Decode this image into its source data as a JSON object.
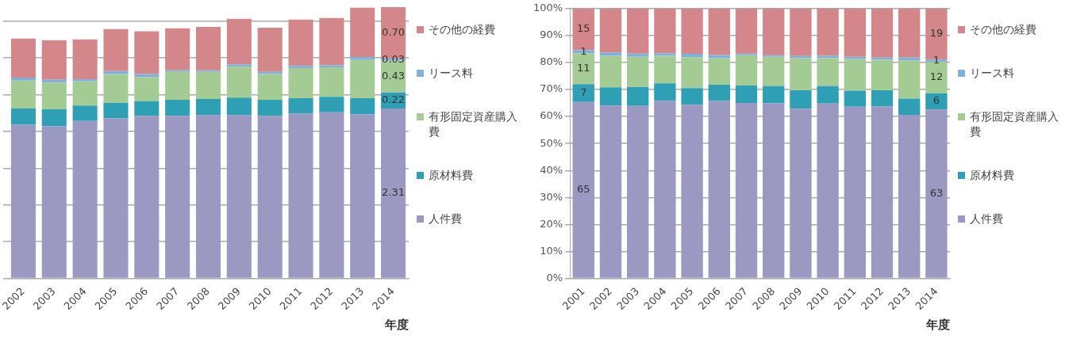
{
  "chart_data": [
    {
      "type": "bar",
      "stacked": true,
      "xlabel": "年度",
      "categories": [
        "2002",
        "2003",
        "2004",
        "2005",
        "2006",
        "2007",
        "2008",
        "2009",
        "2010",
        "2011",
        "2012",
        "2013",
        "2014"
      ],
      "ylim": [
        0,
        3.7
      ],
      "yticks": [
        {
          "value": 0,
          "label": null
        },
        {
          "value": 0.5,
          "label": null
        },
        {
          "value": 1,
          "label": null
        },
        {
          "value": 1.5,
          "label": null
        },
        {
          "value": 2,
          "label": null
        },
        {
          "value": 2.5,
          "label": null
        },
        {
          "value": 3,
          "label": null
        },
        {
          "value": 3.5,
          "label": null
        }
      ],
      "tick_labels": "x",
      "grid": "y",
      "legend": "right",
      "series": [
        {
          "name": "人件費",
          "color": "#9b98c1",
          "values": [
            2.09,
            2.07,
            2.14,
            2.18,
            2.21,
            2.21,
            2.22,
            2.22,
            2.21,
            2.24,
            2.26,
            2.23,
            2.31
          ],
          "value_labels": [
            null,
            null,
            null,
            null,
            null,
            null,
            null,
            null,
            null,
            null,
            null,
            null,
            "2.31"
          ]
        },
        {
          "name": "原材料費",
          "color": "#2e9fb5",
          "values": [
            0.22,
            0.23,
            0.21,
            0.21,
            0.2,
            0.22,
            0.22,
            0.24,
            0.22,
            0.21,
            0.21,
            0.22,
            0.22
          ],
          "value_labels": [
            null,
            null,
            null,
            null,
            null,
            null,
            null,
            null,
            null,
            null,
            null,
            null,
            "0.22"
          ]
        },
        {
          "name": "有形固定資産購入費",
          "color": "#a5cb95",
          "values": [
            0.38,
            0.36,
            0.33,
            0.39,
            0.33,
            0.38,
            0.37,
            0.42,
            0.35,
            0.41,
            0.4,
            0.52,
            0.43
          ],
          "value_labels": [
            null,
            null,
            null,
            null,
            null,
            null,
            null,
            null,
            null,
            null,
            null,
            null,
            "0.43"
          ]
        },
        {
          "name": "リース料",
          "color": "#7fb1dc",
          "values": [
            0.04,
            0.04,
            0.03,
            0.04,
            0.04,
            0.02,
            0.02,
            0.03,
            0.03,
            0.03,
            0.03,
            0.04,
            0.03
          ],
          "value_labels": [
            null,
            null,
            null,
            null,
            null,
            null,
            null,
            null,
            null,
            null,
            null,
            null,
            "0.03"
          ]
        },
        {
          "name": "その他の経費",
          "color": "#d4878a",
          "values": [
            0.53,
            0.54,
            0.54,
            0.57,
            0.58,
            0.57,
            0.59,
            0.62,
            0.6,
            0.63,
            0.64,
            0.67,
            0.7
          ],
          "value_labels": [
            null,
            null,
            null,
            null,
            null,
            null,
            null,
            null,
            null,
            null,
            null,
            null,
            "0.70"
          ]
        }
      ]
    },
    {
      "type": "bar",
      "stacked": true,
      "xlabel": "年度",
      "categories": [
        "2001",
        "2002",
        "2003",
        "2004",
        "2005",
        "2006",
        "2007",
        "2008",
        "2009",
        "2010",
        "2011",
        "2012",
        "2013",
        "2014"
      ],
      "ylim": [
        0,
        100
      ],
      "yticks": [
        {
          "value": 0,
          "label": "0%"
        },
        {
          "value": 10,
          "label": "10%"
        },
        {
          "value": 20,
          "label": "20%"
        },
        {
          "value": 30,
          "label": "30%"
        },
        {
          "value": 40,
          "label": "40%"
        },
        {
          "value": 50,
          "label": "50%"
        },
        {
          "value": 60,
          "label": "60%"
        },
        {
          "value": 70,
          "label": "70%"
        },
        {
          "value": 80,
          "label": "80%"
        },
        {
          "value": 90,
          "label": "90%"
        },
        {
          "value": 100,
          "label": "100%"
        }
      ],
      "grid": "y",
      "legend": "right",
      "series": [
        {
          "name": "人件費",
          "color": "#9b98c1",
          "values": [
            65.4,
            64.1,
            63.9,
            65.8,
            64.3,
            65.8,
            65.0,
            64.9,
            62.9,
            64.8,
            63.6,
            63.8,
            60.6,
            62.6
          ],
          "value_labels": [
            "65",
            null,
            null,
            null,
            null,
            null,
            null,
            null,
            null,
            null,
            null,
            null,
            null,
            "63"
          ]
        },
        {
          "name": "原材料費",
          "color": "#2e9fb5",
          "values": [
            6.6,
            6.7,
            7.1,
            6.5,
            6.2,
            6.0,
            6.5,
            6.4,
            6.8,
            6.5,
            6.0,
            5.9,
            6.0,
            6.0
          ],
          "value_labels": [
            "7",
            null,
            null,
            null,
            null,
            null,
            null,
            null,
            null,
            null,
            null,
            null,
            null,
            "6"
          ]
        },
        {
          "name": "有形固定資産購入費",
          "color": "#a5cb95",
          "values": [
            11.4,
            11.7,
            11.1,
            10.2,
            11.5,
            9.8,
            11.2,
            10.8,
            11.9,
            10.3,
            11.6,
            11.3,
            14.1,
            11.7
          ],
          "value_labels": [
            "11",
            null,
            null,
            null,
            null,
            null,
            null,
            null,
            null,
            null,
            null,
            null,
            null,
            "12"
          ]
        },
        {
          "name": "リース料",
          "color": "#7fb1dc",
          "values": [
            1.2,
            1.2,
            1.2,
            0.9,
            1.2,
            1.2,
            0.6,
            0.6,
            0.8,
            0.9,
            0.9,
            0.8,
            1.1,
            0.8
          ],
          "value_labels": [
            "1",
            null,
            null,
            null,
            null,
            null,
            null,
            null,
            null,
            null,
            null,
            null,
            null,
            "1"
          ]
        },
        {
          "name": "その他の経費",
          "color": "#d4878a",
          "values": [
            15.4,
            16.3,
            16.7,
            16.6,
            16.8,
            17.2,
            16.7,
            17.3,
            17.6,
            17.5,
            17.9,
            18.2,
            18.2,
            18.9
          ],
          "value_labels": [
            "15",
            null,
            null,
            null,
            null,
            null,
            null,
            null,
            null,
            null,
            null,
            null,
            null,
            "19"
          ]
        }
      ]
    }
  ]
}
